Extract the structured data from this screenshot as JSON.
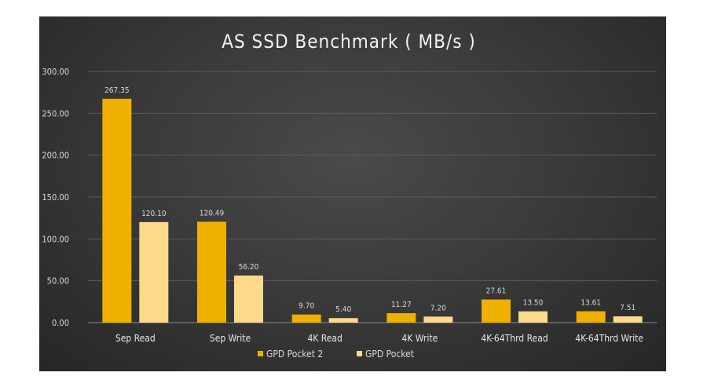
{
  "chart_data": {
    "type": "bar",
    "title": "AS SSD Benchmark ( MB/s )",
    "xlabel": "",
    "ylabel": "",
    "ylim": [
      0,
      300
    ],
    "yticks": [
      "0.00",
      "50.00",
      "100.00",
      "150.00",
      "200.00",
      "250.00",
      "300.00"
    ],
    "categories": [
      "Sep Read",
      "Sep Write",
      "4K Read",
      "4K Write",
      "4K-64Thrd Read",
      "4K-64Thrd Write"
    ],
    "series": [
      {
        "name": "GPD Pocket 2",
        "color": "#f0b000",
        "values": [
          267.35,
          120.49,
          9.7,
          11.27,
          27.61,
          13.61
        ],
        "labels": [
          "267.35",
          "120.49",
          "9.70",
          "11.27",
          "27.61",
          "13.61"
        ]
      },
      {
        "name": "GPD Pocket",
        "color": "#fdd98a",
        "values": [
          120.1,
          56.2,
          5.4,
          7.2,
          13.5,
          7.51
        ],
        "labels": [
          "120.10",
          "56.20",
          "5.40",
          "7.20",
          "13.50",
          "7.51"
        ]
      }
    ],
    "grid": true,
    "legend_position": "bottom-center",
    "colors": {
      "background": "#333333",
      "gridline": "#5a5a5a",
      "text": "#d9d9d9"
    }
  }
}
